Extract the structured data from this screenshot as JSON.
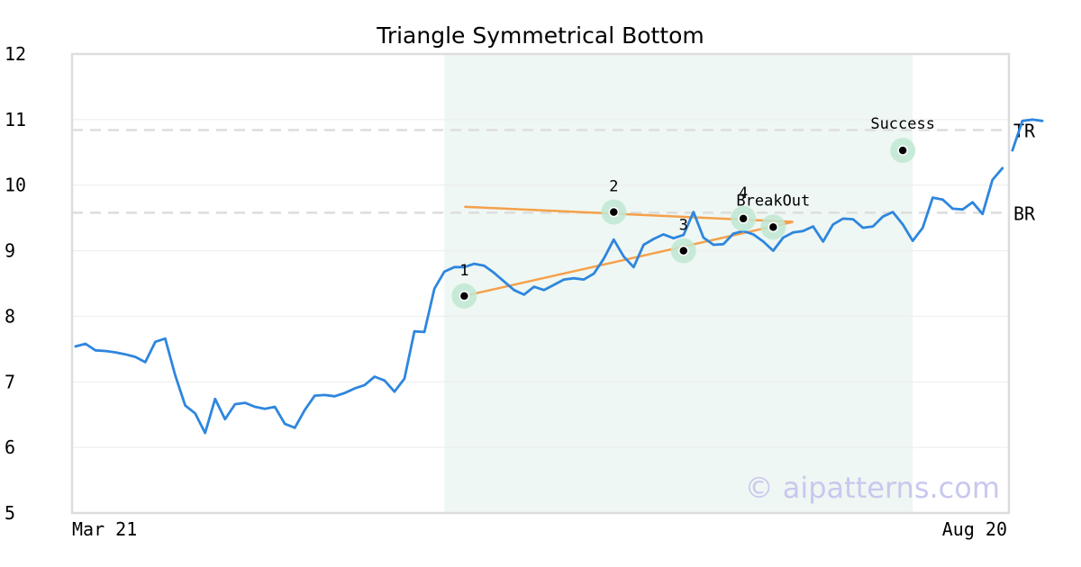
{
  "chart_data": {
    "type": "line",
    "title": "Triangle Symmetrical Bottom",
    "watermark": "© aipatterns.com",
    "ylim": [
      5,
      12
    ],
    "y_ticks": [
      5,
      6,
      7,
      8,
      9,
      10,
      11,
      12
    ],
    "x_start_label": "Mar 21",
    "x_end_label": "Aug 20",
    "n_points": 94,
    "grid": true,
    "colors": {
      "price": "#2e86de",
      "trend": "#f5a04a",
      "highlight_band": "#eef7f3",
      "pivot_halo": "#bfe8d2",
      "level_line": "#dddddd",
      "frame": "#dddddd"
    },
    "pattern_range": [
      37,
      84
    ],
    "series": [
      {
        "values": [
          7.54,
          7.58,
          7.48,
          7.47,
          7.45,
          7.42,
          7.38,
          7.3,
          7.61,
          7.66,
          7.1,
          6.64,
          6.52,
          6.22,
          6.74,
          6.43,
          6.66,
          6.68,
          6.62,
          6.59,
          6.62,
          6.36,
          6.3,
          6.57,
          6.79,
          6.8,
          6.78,
          6.83,
          6.9,
          6.95,
          7.08,
          7.02,
          6.85,
          7.05,
          7.77,
          7.76,
          8.42,
          8.68,
          8.75,
          8.75,
          8.8,
          8.77,
          8.66,
          8.53,
          8.4,
          8.33,
          8.45,
          8.4,
          8.48,
          8.56,
          8.58,
          8.56,
          8.65,
          8.88,
          9.17,
          8.91,
          8.75,
          9.09,
          9.18,
          9.25,
          9.19,
          9.24,
          9.59,
          9.2,
          9.09,
          9.1,
          9.26,
          9.3,
          9.25,
          9.14,
          9.0,
          9.2,
          9.28,
          9.3,
          9.37,
          9.14,
          9.4,
          9.49,
          9.48,
          9.35,
          9.37,
          9.52,
          9.59,
          9.4,
          9.15,
          9.35,
          9.81,
          9.78,
          9.64,
          9.63,
          9.74,
          9.56,
          10.08,
          10.26
        ]
      },
      {
        "values": [
          10.53,
          10.98,
          11.0,
          10.98
        ]
      }
    ],
    "levels": [
      {
        "label": "TR",
        "y": 10.84
      },
      {
        "label": "BR",
        "y": 9.58
      }
    ],
    "trendlines": [
      {
        "from": [
          39,
          9.67
        ],
        "to": [
          72,
          9.44
        ]
      },
      {
        "from": [
          39,
          8.31
        ],
        "to": [
          72,
          9.44
        ]
      }
    ],
    "pivots": [
      {
        "label": "1",
        "x": 39,
        "y": 8.31
      },
      {
        "label": "2",
        "x": 54,
        "y": 9.59
      },
      {
        "label": "3",
        "x": 61,
        "y": 9.0
      },
      {
        "label": "4",
        "x": 67,
        "y": 9.49
      },
      {
        "label": "BreakOut",
        "x": 70,
        "y": 9.36
      },
      {
        "label": "Success",
        "x": 83,
        "y": 10.53
      }
    ]
  }
}
